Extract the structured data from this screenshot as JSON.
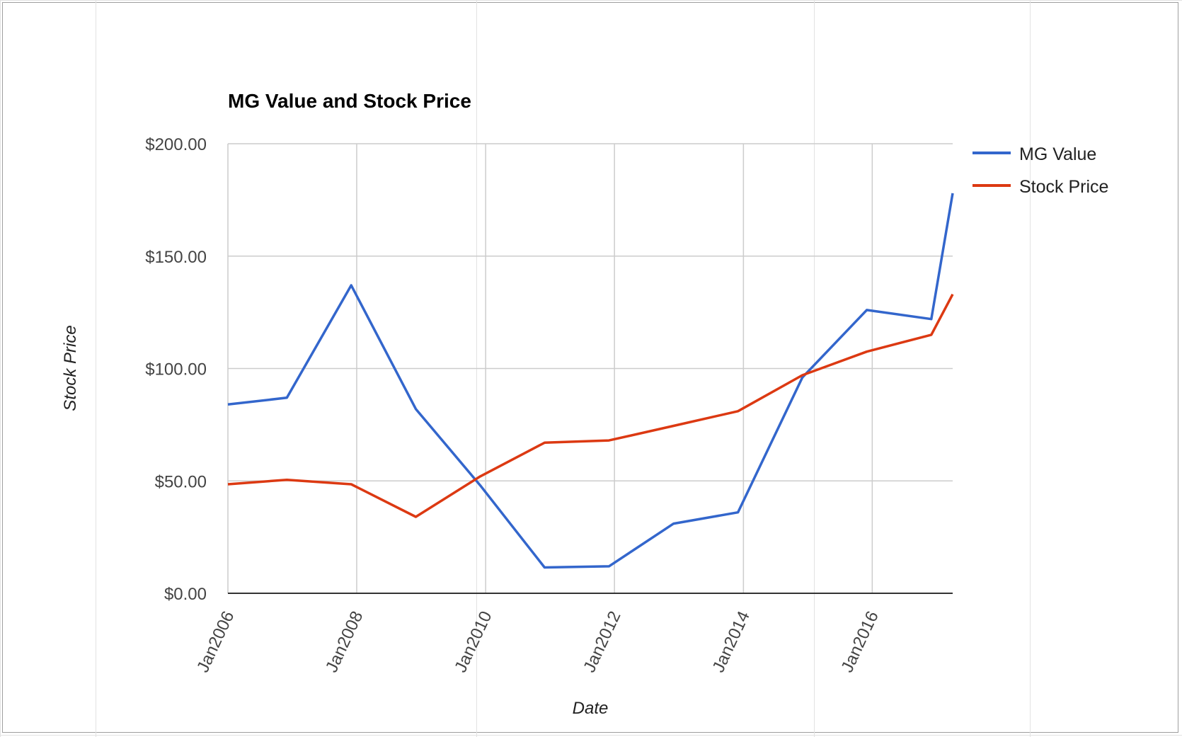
{
  "chart_data": {
    "type": "line",
    "title": "MG Value and Stock Price",
    "xlabel": "Date",
    "ylabel": "Stock Price",
    "ylim": [
      0,
      200
    ],
    "yticks": [
      0,
      50,
      100,
      150,
      200
    ],
    "ytick_labels": [
      "$0.00",
      "$50.00",
      "$100.00",
      "$150.00",
      "$200.00"
    ],
    "xlim": [
      "2006-01-01",
      "2017-04-01"
    ],
    "xticks": [
      "2006-01-01",
      "2008-01-01",
      "2010-01-01",
      "2012-01-01",
      "2014-01-01",
      "2016-01-01"
    ],
    "xtick_labels": [
      "Jan2006",
      "Jan2008",
      "Jan2010",
      "Jan2012",
      "Jan2014",
      "Jan2016"
    ],
    "grid": true,
    "legend_position": "right",
    "x": [
      "2006-01-01",
      "2006-12-01",
      "2007-12-01",
      "2008-12-01",
      "2009-12-01",
      "2010-12-01",
      "2011-12-01",
      "2012-12-01",
      "2013-12-01",
      "2014-12-01",
      "2015-12-01",
      "2016-12-01",
      "2017-04-01"
    ],
    "series": [
      {
        "name": "MG Value",
        "color": "#3366cc",
        "values": [
          84,
          87,
          137,
          82,
          48,
          11.5,
          12,
          31,
          36,
          96,
          126,
          122,
          178
        ]
      },
      {
        "name": "Stock Price",
        "color": "#dc3912",
        "values": [
          48.5,
          50.5,
          48.5,
          34,
          52,
          67,
          68,
          74.5,
          81,
          97,
          107.5,
          115,
          133
        ]
      }
    ]
  }
}
